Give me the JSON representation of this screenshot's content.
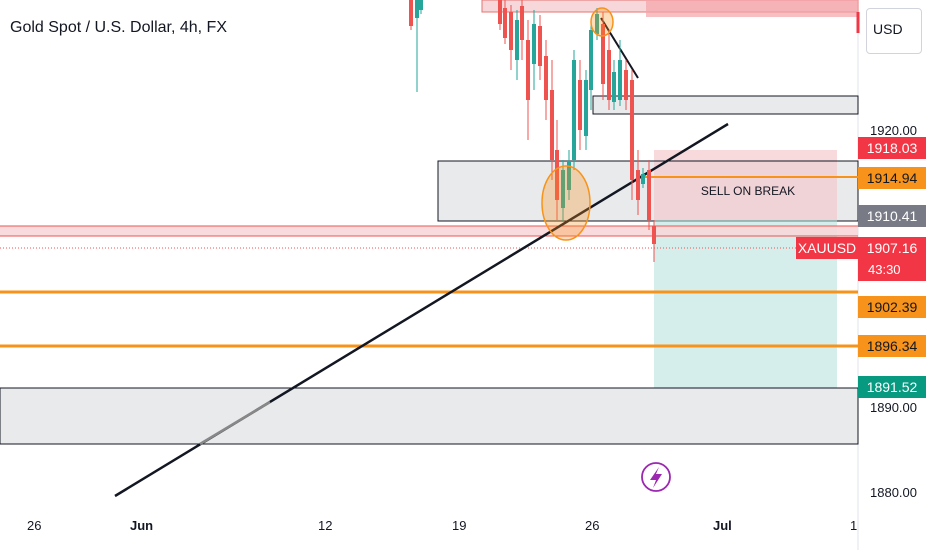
{
  "symbol_title": "Gold Spot / U.S. Dollar, 4h, FX",
  "currency_button": "USD",
  "annotation_text": "SELL ON BREAK",
  "symbol_badge": "XAUUSD",
  "countdown": "43:30",
  "price_labels": {
    "upper_red": "1918.03",
    "upper_orange": "1914.94",
    "gray": "1910.41",
    "current": "1907.16",
    "orange_mid": "1902.39",
    "orange_low": "1896.34",
    "target": "1891.52"
  },
  "price_axis_ticks": [
    "1920.00",
    "1890.00",
    "1880.00"
  ],
  "time_axis_ticks": [
    "26",
    "Jun",
    "12",
    "19",
    "26",
    "Jul",
    "1"
  ],
  "colors": {
    "bull": "#26a69a",
    "bear": "#ef5350",
    "orange": "#f7931a",
    "red_label": "#f23645",
    "gray_label": "#787b86",
    "teal_label": "#089981",
    "accent_purple": "#9c27b0"
  },
  "icons": [
    "lightning-icon"
  ]
}
